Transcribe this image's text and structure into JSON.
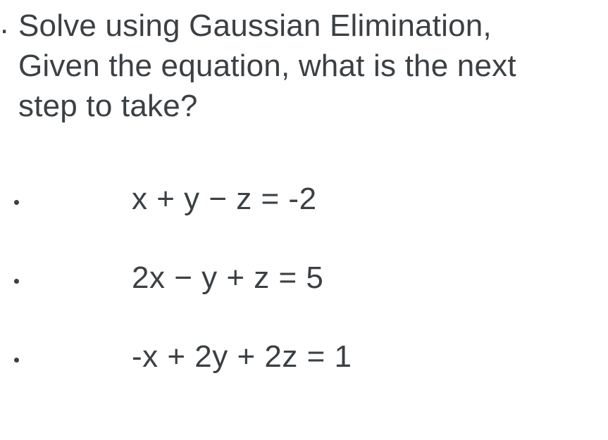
{
  "text_color": "#3b4044",
  "background_color": "#ffffff",
  "font_family": "Arial, Helvetica, sans-serif",
  "question_fontsize": 44,
  "equation_fontsize": 44,
  "leading_period": ".",
  "question": {
    "line1": "Solve using Gaussian Elimination,",
    "line2": "Given the equation, what is the next",
    "line3": "step to take?"
  },
  "equations": [
    {
      "text": "x + y − z = -2"
    },
    {
      "text": "2x − y + z = 5"
    },
    {
      "text": "-x + 2y + 2z = 1"
    }
  ],
  "bullet_color": "#3b4044",
  "bullet_diameter": 7,
  "equation_indent_from_bullet": 160,
  "row_spacing": 62
}
